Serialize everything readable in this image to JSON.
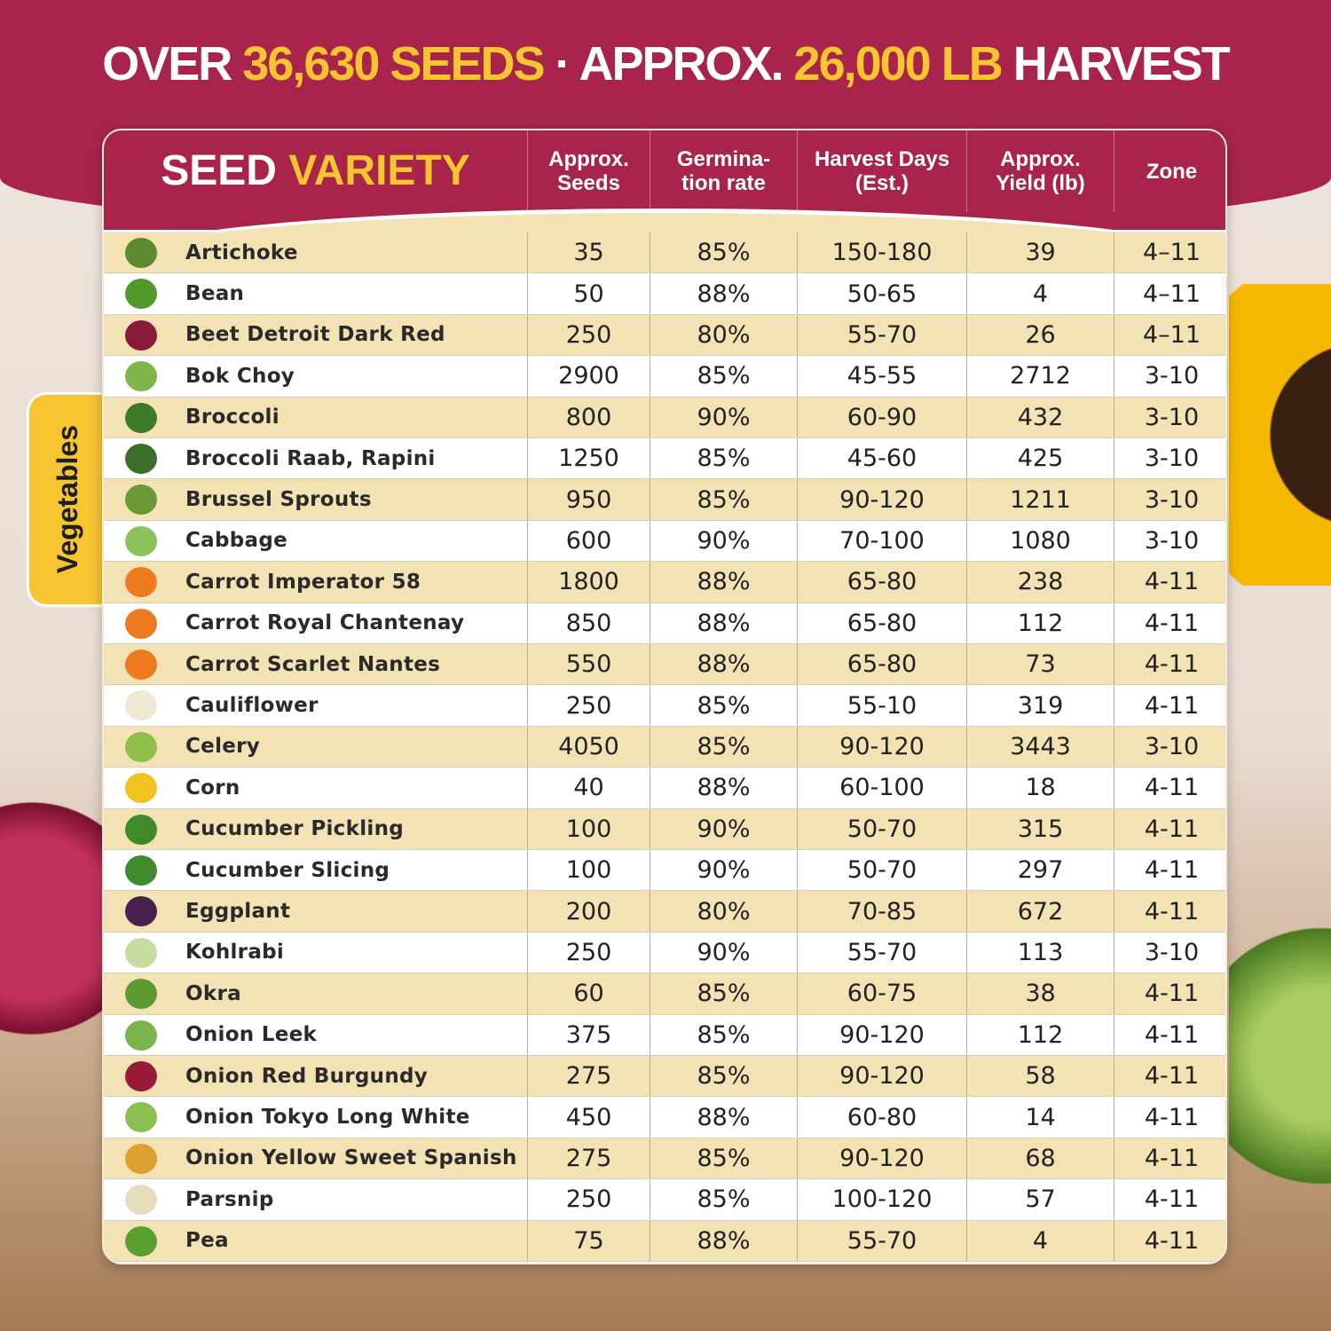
{
  "headline": {
    "part1": "OVER ",
    "seeds": "36,630 SEEDS",
    "part2": " · APPROX. ",
    "harvest": "26,000 LB",
    "part3": " HARVEST"
  },
  "side_tab": "Vegetables",
  "header": {
    "variety_1": "SEED ",
    "variety_2": "VARIETY",
    "seeds": "Approx. Seeds",
    "germination": "Germina- tion rate",
    "days": "Harvest Days (Est.)",
    "yield": "Approx. Yield (lb)",
    "zone": "Zone"
  },
  "colors": {
    "brand": "#a8244b",
    "accent": "#f7c531",
    "row_alt": "#f3e2b3"
  },
  "rows": [
    {
      "name": "Artichoke",
      "seeds": "35",
      "germ": "85%",
      "days": "150-180",
      "yield": "39",
      "zone": "4–11",
      "icon": "artichoke-icon",
      "c": "#5c8a2e"
    },
    {
      "name": "Bean",
      "seeds": "50",
      "germ": "88%",
      "days": "50-65",
      "yield": "4",
      "zone": "4–11",
      "icon": "bean-icon",
      "c": "#4f9a2a"
    },
    {
      "name": "Beet Detroit Dark Red",
      "seeds": "250",
      "germ": "80%",
      "days": "55-70",
      "yield": "26",
      "zone": "4–11",
      "icon": "beet-icon",
      "c": "#8a1a3a"
    },
    {
      "name": "Bok Choy",
      "seeds": "2900",
      "germ": "85%",
      "days": "45-55",
      "yield": "2712",
      "zone": "3-10",
      "icon": "bok-choy-icon",
      "c": "#7fb64a"
    },
    {
      "name": "Broccoli",
      "seeds": "800",
      "germ": "90%",
      "days": "60-90",
      "yield": "432",
      "zone": "3-10",
      "icon": "broccoli-icon",
      "c": "#3f7a2a"
    },
    {
      "name": "Broccoli Raab, Rapini",
      "seeds": "1250",
      "germ": "85%",
      "days": "45-60",
      "yield": "425",
      "zone": "3-10",
      "icon": "rapini-icon",
      "c": "#3a6e2a"
    },
    {
      "name": "Brussel Sprouts",
      "seeds": "950",
      "germ": "85%",
      "days": "90-120",
      "yield": "1211",
      "zone": "3-10",
      "icon": "brussel-sprouts-icon",
      "c": "#6a9a35"
    },
    {
      "name": "Cabbage",
      "seeds": "600",
      "germ": "90%",
      "days": "70-100",
      "yield": "1080",
      "zone": "3-10",
      "icon": "cabbage-icon",
      "c": "#8cc35a"
    },
    {
      "name": "Carrot Imperator 58",
      "seeds": "1800",
      "germ": "88%",
      "days": "65-80",
      "yield": "238",
      "zone": "4-11",
      "icon": "carrot-icon",
      "c": "#ee7a20"
    },
    {
      "name": "Carrot Royal Chantenay",
      "seeds": "850",
      "germ": "88%",
      "days": "65-80",
      "yield": "112",
      "zone": "4-11",
      "icon": "carrot-icon",
      "c": "#ee7a20"
    },
    {
      "name": "Carrot Scarlet Nantes",
      "seeds": "550",
      "germ": "88%",
      "days": "65-80",
      "yield": "73",
      "zone": "4-11",
      "icon": "carrot-icon",
      "c": "#ee7a20"
    },
    {
      "name": "Cauliflower",
      "seeds": "250",
      "germ": "85%",
      "days": "55-10",
      "yield": "319",
      "zone": "4-11",
      "icon": "cauliflower-icon",
      "c": "#eee8d5"
    },
    {
      "name": "Celery",
      "seeds": "4050",
      "germ": "85%",
      "days": "90-120",
      "yield": "3443",
      "zone": "3-10",
      "icon": "celery-icon",
      "c": "#8fc04a"
    },
    {
      "name": "Corn",
      "seeds": "40",
      "germ": "88%",
      "days": "60-100",
      "yield": "18",
      "zone": "4-11",
      "icon": "corn-icon",
      "c": "#f0c420"
    },
    {
      "name": "Cucumber Pickling",
      "seeds": "100",
      "germ": "90%",
      "days": "50-70",
      "yield": "315",
      "zone": "4-11",
      "icon": "cucumber-icon",
      "c": "#3f8a2a"
    },
    {
      "name": "Cucumber Slicing",
      "seeds": "100",
      "germ": "90%",
      "days": "50-70",
      "yield": "297",
      "zone": "4-11",
      "icon": "cucumber-icon",
      "c": "#3f8a2a"
    },
    {
      "name": "Eggplant",
      "seeds": "200",
      "germ": "80%",
      "days": "70-85",
      "yield": "672",
      "zone": "4-11",
      "icon": "eggplant-icon",
      "c": "#4a2050"
    },
    {
      "name": "Kohlrabi",
      "seeds": "250",
      "germ": "90%",
      "days": "55-70",
      "yield": "113",
      "zone": "3-10",
      "icon": "kohlrabi-icon",
      "c": "#c8dca0"
    },
    {
      "name": "Okra",
      "seeds": "60",
      "germ": "85%",
      "days": "60-75",
      "yield": "38",
      "zone": "4-11",
      "icon": "okra-icon",
      "c": "#5a9a30"
    },
    {
      "name": "Onion Leek",
      "seeds": "375",
      "germ": "85%",
      "days": "90-120",
      "yield": "112",
      "zone": "4-11",
      "icon": "leek-icon",
      "c": "#7ab44a"
    },
    {
      "name": "Onion Red Burgundy",
      "seeds": "275",
      "germ": "85%",
      "days": "90-120",
      "yield": "58",
      "zone": "4-11",
      "icon": "red-onion-icon",
      "c": "#9a1a3a"
    },
    {
      "name": "Onion Tokyo Long White",
      "seeds": "450",
      "germ": "88%",
      "days": "60-80",
      "yield": "14",
      "zone": "4-11",
      "icon": "green-onion-icon",
      "c": "#8ac050"
    },
    {
      "name": "Onion Yellow Sweet Spanish",
      "seeds": "275",
      "germ": "85%",
      "days": "90-120",
      "yield": "68",
      "zone": "4-11",
      "icon": "yellow-onion-icon",
      "c": "#e0a030"
    },
    {
      "name": "Parsnip",
      "seeds": "250",
      "germ": "85%",
      "days": "100-120",
      "yield": "57",
      "zone": "4-11",
      "icon": "parsnip-icon",
      "c": "#e8dcc0"
    },
    {
      "name": "Pea",
      "seeds": "75",
      "germ": "88%",
      "days": "55-70",
      "yield": "4",
      "zone": "4-11",
      "icon": "pea-icon",
      "c": "#5aa030"
    }
  ]
}
